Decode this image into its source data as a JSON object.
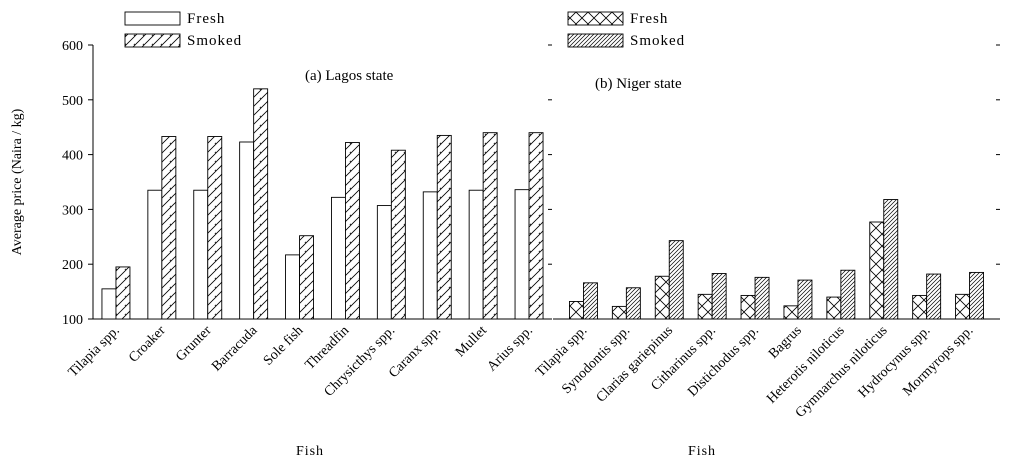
{
  "chart_data": [
    {
      "type": "bar",
      "panel_label": "(a)",
      "title": "Lagos state",
      "xlabel": "Fish",
      "ylabel": "Average price (Naira / kg)",
      "ylim": [
        100,
        600
      ],
      "yticks": [
        100,
        200,
        300,
        400,
        500,
        600
      ],
      "legend_position": "top-left",
      "categories": [
        "Tilapia spp.",
        "Croaker",
        "Grunter",
        "Barracuda",
        "Sole fish",
        "Threadfin",
        "Chrysicthys spp.",
        "Caranx spp.",
        "Mullet",
        "Arius spp."
      ],
      "series": [
        {
          "name": "Fresh",
          "pattern": "open",
          "values": [
            155,
            335,
            335,
            423,
            217,
            322,
            307,
            332,
            335,
            336
          ]
        },
        {
          "name": "Smoked",
          "pattern": "diagonal-hatch",
          "values": [
            195,
            433,
            433,
            520,
            252,
            422,
            408,
            435,
            440,
            440
          ]
        }
      ]
    },
    {
      "type": "bar",
      "panel_label": "(b)",
      "title": "Niger state",
      "xlabel": "Fish",
      "ylabel": "",
      "ylim": [
        100,
        600
      ],
      "legend_position": "top-left",
      "categories": [
        "Tilapia spp.",
        "Synodontis spp.",
        "Clarias gariepinus",
        "Citharinus spp.",
        "Distichodus spp.",
        "Bagrus",
        "Heterotis niloticus",
        "Gymnarchus niloticus",
        "Hydrocynus spp.",
        "Mormyrops spp."
      ],
      "series": [
        {
          "name": "Fresh",
          "pattern": "cross-hatch",
          "values": [
            132,
            123,
            178,
            145,
            143,
            124,
            140,
            277,
            143,
            145
          ]
        },
        {
          "name": "Smoked",
          "pattern": "dense-diagonal-hatch",
          "values": [
            166,
            157,
            243,
            183,
            176,
            171,
            189,
            318,
            182,
            185
          ]
        }
      ]
    }
  ]
}
